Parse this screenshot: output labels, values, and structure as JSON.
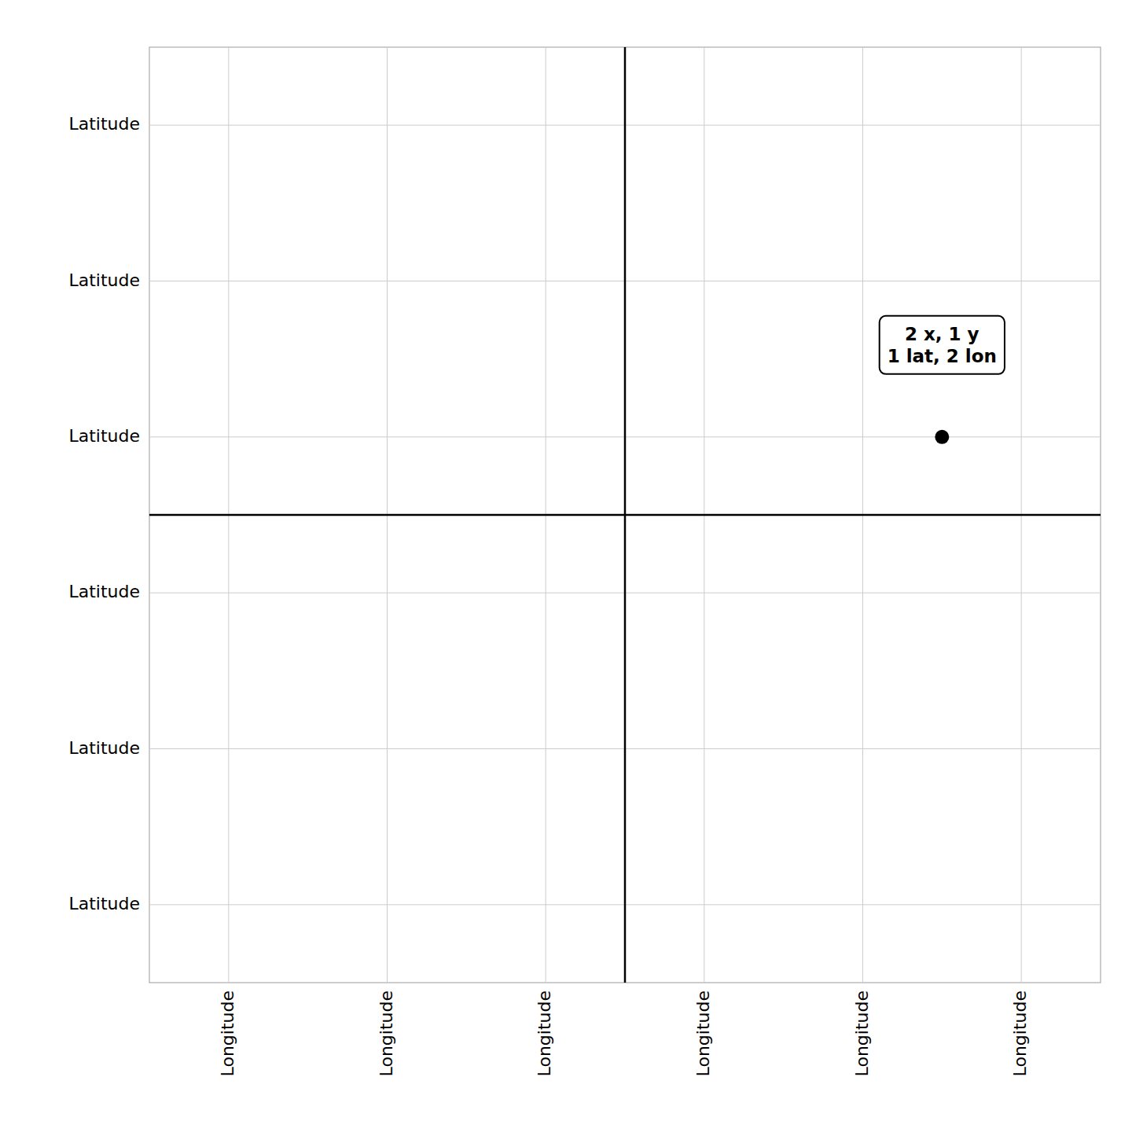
{
  "chart_data": {
    "type": "scatter",
    "x": [
      2.0
    ],
    "values": [
      0.5
    ],
    "color": "#000000",
    "xlim": [
      -3,
      3
    ],
    "ylim": [
      -3,
      3
    ],
    "xticks": [
      {
        "value": -2.5,
        "label": "Longitude"
      },
      {
        "value": -1.5,
        "label": "Longitude"
      },
      {
        "value": -0.5,
        "label": "Longitude"
      },
      {
        "value": 0.5,
        "label": "Longitude"
      },
      {
        "value": 1.5,
        "label": "Longitude"
      },
      {
        "value": 2.5,
        "label": "Longitude"
      }
    ],
    "yticks": [
      {
        "value": 2.5,
        "label": "Latitude"
      },
      {
        "value": 1.5,
        "label": "Latitude"
      },
      {
        "value": 0.5,
        "label": "Latitude"
      },
      {
        "value": -0.5,
        "label": "Latitude"
      },
      {
        "value": -1.5,
        "label": "Latitude"
      },
      {
        "value": -2.5,
        "label": "Latitude"
      }
    ],
    "grid": true,
    "annotations": [
      {
        "text": "2 x, 1 y\n1 lat, 2 lon",
        "x": 2.0,
        "y": 0.5
      }
    ]
  }
}
